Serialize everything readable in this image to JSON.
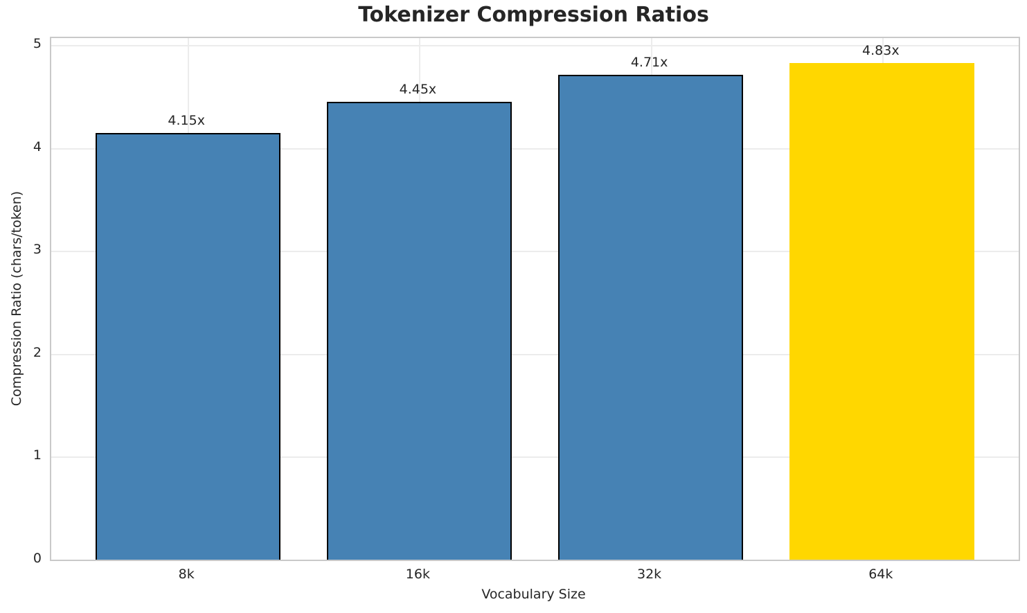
{
  "chart_data": {
    "type": "bar",
    "title": "Tokenizer Compression Ratios",
    "xlabel": "Vocabulary Size",
    "ylabel": "Compression Ratio (chars/token)",
    "categories": [
      "8k",
      "16k",
      "32k",
      "64k"
    ],
    "values": [
      4.15,
      4.45,
      4.71,
      4.83
    ],
    "bar_labels": [
      "4.15x",
      "4.45x",
      "4.71x",
      "4.83x"
    ],
    "bar_colors": [
      "#4682B4",
      "#4682B4",
      "#4682B4",
      "#FFD700"
    ],
    "bar_edge_colors": [
      "#000000",
      "#000000",
      "#000000",
      "#FFD700"
    ],
    "highlighted_category": "64k",
    "ylim": [
      0,
      5.07
    ],
    "yticks": [
      0,
      1,
      2,
      3,
      4,
      5
    ],
    "grid": true,
    "legend_position": "none",
    "colors": {
      "bar_default": "#4682B4",
      "bar_highlight": "#FFD700",
      "bar_edge": "#000000",
      "grid": "#ececec",
      "spine": "#c9c9c9",
      "text": "#262626",
      "background": "#ffffff"
    }
  }
}
